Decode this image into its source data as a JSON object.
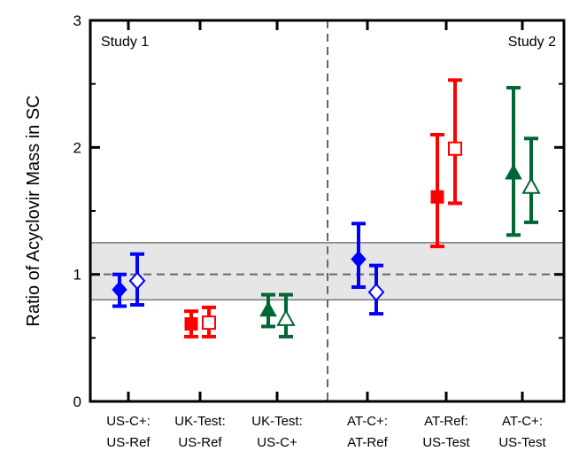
{
  "chart_data": {
    "type": "scatter",
    "title": "",
    "ylabel": "Ratio of Acyclovir Mass in SC",
    "ylim": [
      0,
      3
    ],
    "yticks": [
      "0",
      "1",
      "2",
      "3"
    ],
    "reference_line": 1,
    "equivalence_band": [
      0.8,
      1.25
    ],
    "divider_after_category": 3,
    "categories": [
      {
        "line1": "US-C+:",
        "line2": "US-Ref"
      },
      {
        "line1": "UK-Test:",
        "line2": "US-Ref"
      },
      {
        "line1": "UK-Test:",
        "line2": "US-C+"
      },
      {
        "line1": "AT-C+:",
        "line2": "AT-Ref"
      },
      {
        "line1": "AT-Ref:",
        "line2": "US-Test"
      },
      {
        "line1": "AT-C+:",
        "line2": "US-Test"
      }
    ],
    "study_labels": {
      "left": "Study 1",
      "right": "Study 2"
    },
    "points": [
      {
        "category": 0,
        "offset": "left",
        "marker": "diamond",
        "filled": true,
        "color": "#0000ff",
        "value": 0.88,
        "low": 0.75,
        "high": 1.0
      },
      {
        "category": 0,
        "offset": "right",
        "marker": "diamond",
        "filled": false,
        "color": "#0000ff",
        "value": 0.95,
        "low": 0.76,
        "high": 1.16
      },
      {
        "category": 1,
        "offset": "left",
        "marker": "square",
        "filled": true,
        "color": "#ff0000",
        "value": 0.61,
        "low": 0.51,
        "high": 0.71
      },
      {
        "category": 1,
        "offset": "right",
        "marker": "square",
        "filled": false,
        "color": "#ff0000",
        "value": 0.62,
        "low": 0.51,
        "high": 0.74
      },
      {
        "category": 2,
        "offset": "left",
        "marker": "triangle",
        "filled": true,
        "color": "#006633",
        "value": 0.72,
        "low": 0.59,
        "high": 0.84
      },
      {
        "category": 2,
        "offset": "right",
        "marker": "triangle",
        "filled": false,
        "color": "#006633",
        "value": 0.65,
        "low": 0.51,
        "high": 0.84
      },
      {
        "category": 3,
        "offset": "left",
        "marker": "diamond",
        "filled": true,
        "color": "#0000ff",
        "value": 1.12,
        "low": 0.9,
        "high": 1.4
      },
      {
        "category": 3,
        "offset": "right",
        "marker": "diamond",
        "filled": false,
        "color": "#0000ff",
        "value": 0.86,
        "low": 0.69,
        "high": 1.07
      },
      {
        "category": 4,
        "offset": "left",
        "marker": "square",
        "filled": true,
        "color": "#ff0000",
        "value": 1.61,
        "low": 1.22,
        "high": 2.1
      },
      {
        "category": 4,
        "offset": "right",
        "marker": "square",
        "filled": false,
        "color": "#ff0000",
        "value": 1.99,
        "low": 1.56,
        "high": 2.53
      },
      {
        "category": 5,
        "offset": "left",
        "marker": "triangle",
        "filled": true,
        "color": "#006633",
        "value": 1.8,
        "low": 1.31,
        "high": 2.47
      },
      {
        "category": 5,
        "offset": "right",
        "marker": "triangle",
        "filled": false,
        "color": "#006633",
        "value": 1.69,
        "low": 1.41,
        "high": 2.07
      }
    ]
  }
}
